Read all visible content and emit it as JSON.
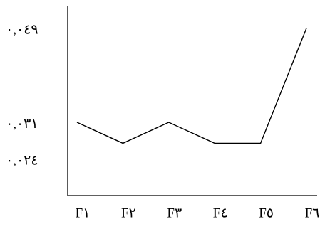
{
  "chart_data": {
    "type": "line",
    "categories": [
      "F١",
      "F٢",
      "F٣",
      "F٤",
      "F٥",
      "F٦"
    ],
    "series": [
      {
        "color": "#000000",
        "values": [
          0.0315,
          0.0275,
          0.0315,
          0.0275,
          0.0275,
          0.0495
        ]
      }
    ],
    "ylim": [
      0.0175,
      0.0538
    ],
    "yticks": [
      {
        "value": 0.024,
        "label": "٠,٠٢٤"
      },
      {
        "value": 0.031,
        "label": "٠,٠٣١"
      },
      {
        "value": 0.049,
        "label": "٠,٠٤٩"
      }
    ],
    "grid": false
  }
}
